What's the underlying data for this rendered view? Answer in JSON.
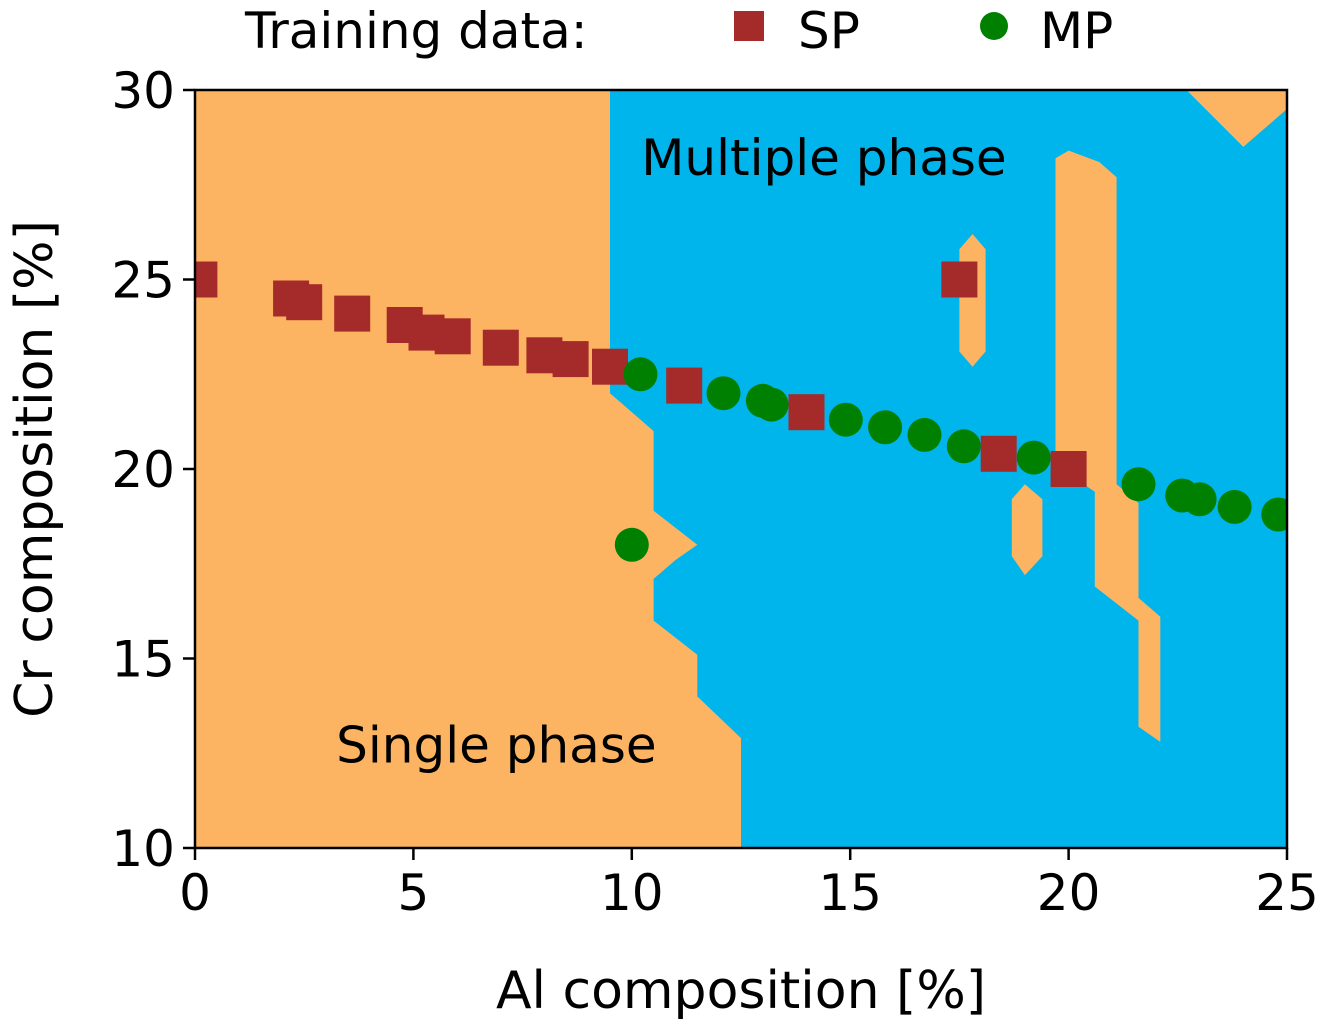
{
  "chart_data": {
    "type": "scatter",
    "xlabel": "Al composition [%]",
    "ylabel": "Cr composition [%]",
    "xlim": [
      0,
      25
    ],
    "ylim": [
      10,
      30
    ],
    "xticks": [
      0,
      5,
      10,
      15,
      20,
      25
    ],
    "yticks": [
      10,
      15,
      20,
      25,
      30
    ],
    "grid": false,
    "legend": {
      "title": "Training data:",
      "placement": "top",
      "entries": [
        {
          "name": "SP",
          "marker": "square",
          "color": "#a52a2a"
        },
        {
          "name": "MP",
          "marker": "circle",
          "color": "#008000"
        }
      ]
    },
    "background_classes": {
      "single_phase_color": "#fdb462",
      "multiple_phase_color": "#00b5ec",
      "single_phase_label": "Single phase",
      "multiple_phase_label": "Multiple phase",
      "single_phase_label_at": [
        6.9,
        12.7
      ],
      "multiple_phase_label_at": [
        14.4,
        28.2
      ],
      "multiple_phase_regions": [
        [
          [
            9.5,
            30
          ],
          [
            22.7,
            30
          ],
          [
            24.0,
            28.5
          ],
          [
            25,
            29.5
          ],
          [
            25,
            10
          ],
          [
            12.5,
            10
          ],
          [
            12.5,
            12.9
          ],
          [
            11.5,
            14.0
          ],
          [
            11.5,
            15.1
          ],
          [
            10.5,
            16.0
          ],
          [
            10.5,
            17.1
          ],
          [
            11.0,
            17.6
          ],
          [
            11.5,
            18.0
          ],
          [
            10.5,
            18.9
          ],
          [
            10.5,
            21.0
          ],
          [
            9.5,
            22.0
          ]
        ]
      ],
      "single_phase_islands": [
        [
          [
            17.5,
            25.8
          ],
          [
            17.8,
            26.2
          ],
          [
            18.1,
            25.8
          ],
          [
            18.1,
            23.1
          ],
          [
            17.8,
            22.7
          ],
          [
            17.5,
            23.1
          ]
        ],
        [
          [
            19.7,
            28.2
          ],
          [
            20.0,
            28.4
          ],
          [
            20.7,
            28.1
          ],
          [
            21.1,
            27.7
          ],
          [
            21.1,
            19.6
          ],
          [
            21.6,
            19.1
          ],
          [
            21.6,
            16.6
          ],
          [
            22.1,
            16.1
          ],
          [
            22.1,
            12.8
          ],
          [
            21.6,
            13.2
          ],
          [
            21.6,
            16.0
          ],
          [
            20.6,
            16.9
          ],
          [
            20.6,
            19.4
          ],
          [
            19.7,
            20.1
          ]
        ],
        [
          [
            18.7,
            19.2
          ],
          [
            19.0,
            19.6
          ],
          [
            19.4,
            19.2
          ],
          [
            19.4,
            17.7
          ],
          [
            19.0,
            17.2
          ],
          [
            18.7,
            17.7
          ]
        ]
      ]
    },
    "series": [
      {
        "name": "SP",
        "marker": "square",
        "color": "#a52a2a",
        "points": [
          [
            0.1,
            25.0
          ],
          [
            2.2,
            24.5
          ],
          [
            2.5,
            24.4
          ],
          [
            3.6,
            24.1
          ],
          [
            4.8,
            23.8
          ],
          [
            5.3,
            23.6
          ],
          [
            5.9,
            23.5
          ],
          [
            7.0,
            23.2
          ],
          [
            8.0,
            23.0
          ],
          [
            8.6,
            22.9
          ],
          [
            9.5,
            22.7
          ],
          [
            11.2,
            22.2
          ],
          [
            14.0,
            21.5
          ],
          [
            17.5,
            25.0
          ],
          [
            18.4,
            20.4
          ],
          [
            20.0,
            20.0
          ]
        ]
      },
      {
        "name": "MP",
        "marker": "circle",
        "color": "#008000",
        "points": [
          [
            10.2,
            22.5
          ],
          [
            10.0,
            18.0
          ],
          [
            12.1,
            22.0
          ],
          [
            13.0,
            21.8
          ],
          [
            13.2,
            21.7
          ],
          [
            14.9,
            21.3
          ],
          [
            15.8,
            21.1
          ],
          [
            16.7,
            20.9
          ],
          [
            17.6,
            20.6
          ],
          [
            19.2,
            20.3
          ],
          [
            21.6,
            19.6
          ],
          [
            22.6,
            19.3
          ],
          [
            23.0,
            19.2
          ],
          [
            23.8,
            19.0
          ],
          [
            24.8,
            18.8
          ]
        ]
      }
    ]
  }
}
